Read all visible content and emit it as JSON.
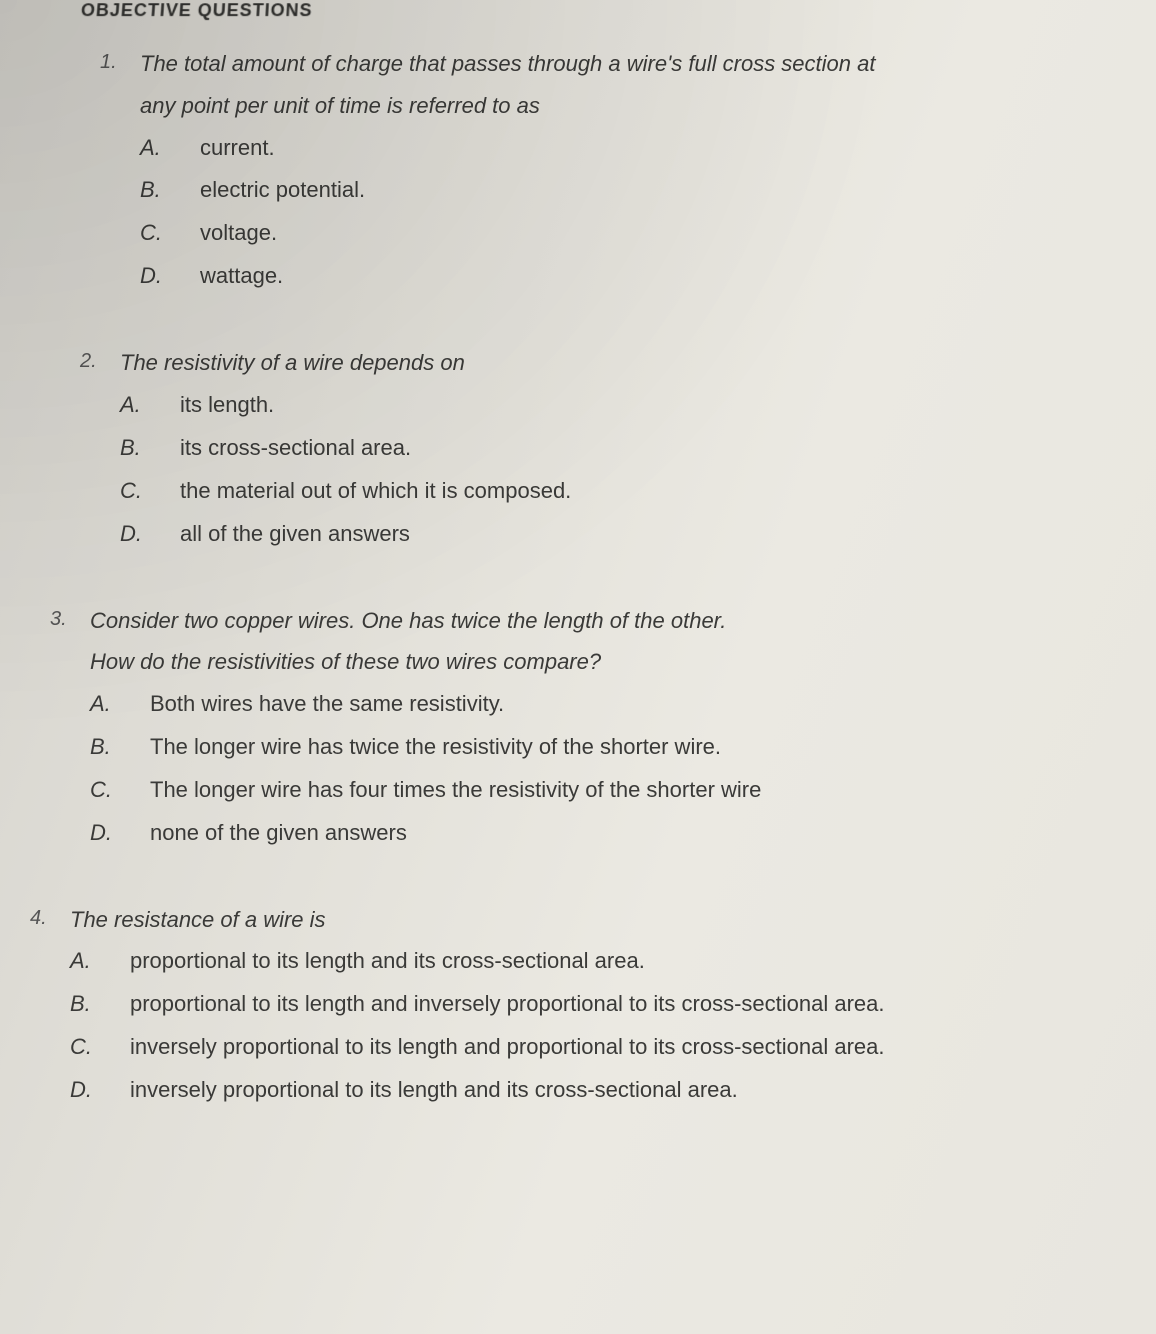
{
  "header": "OBJECTIVE QUESTIONS",
  "questions": [
    {
      "number": "1.",
      "text_lines": [
        "The total amount of charge that passes through a wire's full cross section at",
        "any point per unit of time is referred to as"
      ],
      "options": [
        {
          "letter": "A.",
          "text": "current."
        },
        {
          "letter": "B.",
          "text": "electric potential."
        },
        {
          "letter": "C.",
          "text": "voltage."
        },
        {
          "letter": "D.",
          "text": "wattage."
        }
      ]
    },
    {
      "number": "2.",
      "text_lines": [
        "The resistivity of a wire depends on"
      ],
      "options": [
        {
          "letter": "A.",
          "text": "its length."
        },
        {
          "letter": "B.",
          "text": "its cross-sectional area."
        },
        {
          "letter": "C.",
          "text": "the material out of which it is composed."
        },
        {
          "letter": "D.",
          "text": "all of the given answers"
        }
      ]
    },
    {
      "number": "3.",
      "text_lines": [
        "Consider two copper wires. One has twice the length of the other.",
        "How do the resistivities of these two wires compare?"
      ],
      "options": [
        {
          "letter": "A.",
          "text": "Both wires have the same resistivity."
        },
        {
          "letter": "B.",
          "text": "The longer wire has twice the resistivity of the shorter wire."
        },
        {
          "letter": "C.",
          "text": "The longer wire has four times the resistivity of the shorter wire"
        },
        {
          "letter": "D.",
          "text": "none of the given answers"
        }
      ]
    },
    {
      "number": "4.",
      "text_lines": [
        "The resistance of a wire is"
      ],
      "options": [
        {
          "letter": "A.",
          "text": "proportional to its length and its cross-sectional area."
        },
        {
          "letter": "B.",
          "text": "proportional to its length and inversely proportional to its cross-sectional area."
        },
        {
          "letter": "C.",
          "text": "inversely proportional to its length and proportional to its cross-sectional area."
        },
        {
          "letter": "D.",
          "text": "inversely proportional to its length and its cross-sectional area."
        }
      ]
    }
  ]
}
